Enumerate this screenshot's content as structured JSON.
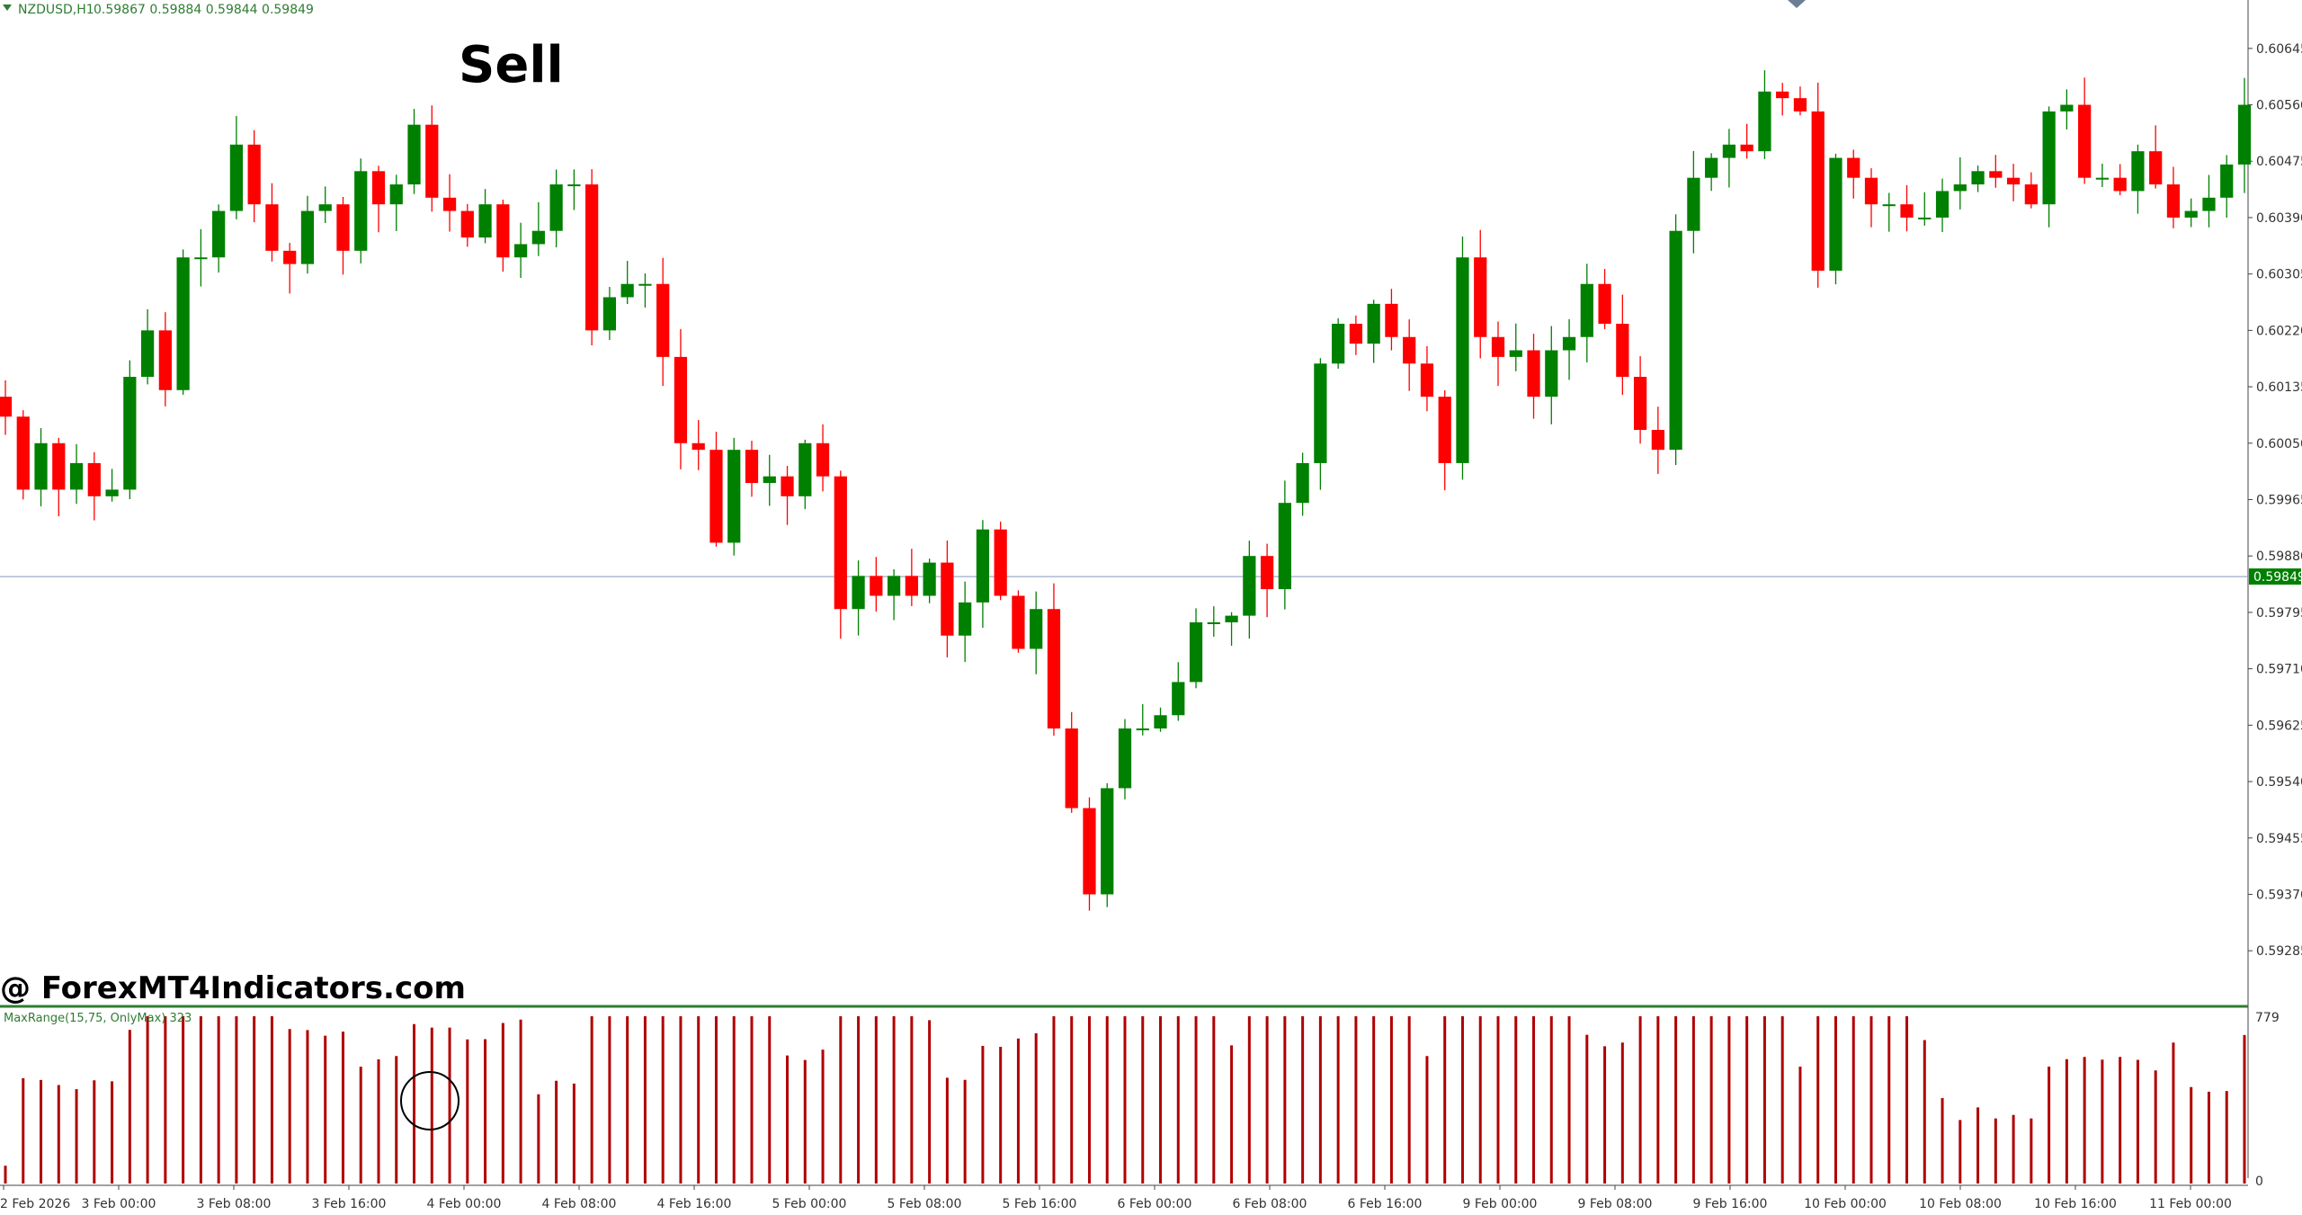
{
  "header": {
    "symbol_label": "NZDUSD,H1",
    "ohlc": "0.59867 0.59884 0.59844 0.59849"
  },
  "annotations": {
    "signal_label": "Sell",
    "watermark": "@ ForexMT4Indicators.com"
  },
  "price_axis": {
    "ticks": [
      "0.60645",
      "0.60560",
      "0.60475",
      "0.60390",
      "0.60305",
      "0.60220",
      "0.60135",
      "0.60050",
      "0.59965",
      "0.59880",
      "0.59795",
      "0.59710",
      "0.59625",
      "0.59540",
      "0.59455",
      "0.59370",
      "0.59285"
    ],
    "current_price": "0.59849"
  },
  "indicator": {
    "label": "MaxRange(15,75, OnlyMax) 323",
    "max_label": "779",
    "min_label": "0"
  },
  "time_axis": {
    "labels": [
      "2 Feb 2026",
      "3 Feb 00:00",
      "3 Feb 08:00",
      "3 Feb 16:00",
      "4 Feb 00:00",
      "4 Feb 08:00",
      "4 Feb 16:00",
      "5 Feb 00:00",
      "5 Feb 08:00",
      "5 Feb 16:00",
      "6 Feb 00:00",
      "6 Feb 08:00",
      "6 Feb 16:00",
      "9 Feb 00:00",
      "9 Feb 08:00",
      "9 Feb 16:00",
      "10 Feb 00:00",
      "10 Feb 08:00",
      "10 Feb 16:00",
      "11 Feb 00:00"
    ]
  },
  "colors": {
    "bull": "#008000",
    "bear": "#ff0000",
    "indicator_bar": "#b00000",
    "axis_text": "#333333",
    "current_price_bg": "#008000",
    "current_line": "#8899bb"
  },
  "chart_data": [
    {
      "type": "candlestick",
      "title": "NZDUSD,H1",
      "ylim": [
        0.5925,
        0.6068
      ],
      "close_series": [
        0.6009,
        0.5998,
        0.6005,
        0.5998,
        0.6002,
        0.5997,
        0.5998,
        0.6015,
        0.6022,
        0.6013,
        0.6033,
        0.6033,
        0.604,
        0.605,
        0.6041,
        0.6034,
        0.6032,
        0.604,
        0.6041,
        0.6034,
        0.6046,
        0.6041,
        0.6044,
        0.6053,
        0.6042,
        0.604,
        0.6036,
        0.6041,
        0.6033,
        0.6035,
        0.6037,
        0.6044,
        0.6044,
        0.6022,
        0.6027,
        0.6029,
        0.6029,
        0.6018,
        0.6005,
        0.6004,
        0.599,
        0.6004,
        0.5999,
        0.6,
        0.5997,
        0.6005,
        0.6,
        0.598,
        0.5985,
        0.5982,
        0.5985,
        0.5982,
        0.5987,
        0.5976,
        0.5981,
        0.5992,
        0.5982,
        0.5974,
        0.598,
        0.5962,
        0.595,
        0.5937,
        0.5953,
        0.5962,
        0.5962,
        0.5964,
        0.5969,
        0.5978,
        0.5978,
        0.5979,
        0.5988,
        0.5983,
        0.5996,
        0.6002,
        0.6017,
        0.6023,
        0.602,
        0.6026,
        0.6021,
        0.6017,
        0.6012,
        0.6002,
        0.6033,
        0.6021,
        0.6018,
        0.6019,
        0.6012,
        0.6019,
        0.6021,
        0.6029,
        0.6023,
        0.6015,
        0.6007,
        0.6004,
        0.6037,
        0.6045,
        0.6048,
        0.605,
        0.6049,
        0.6058,
        0.6057,
        0.6055,
        0.6031,
        0.6048,
        0.6045,
        0.6041,
        0.6041,
        0.6039,
        0.6039,
        0.6043,
        0.6044,
        0.6046,
        0.6045,
        0.6044,
        0.6041,
        0.6055,
        0.6056,
        0.6045,
        0.6045,
        0.6043,
        0.6049,
        0.6044,
        0.6039,
        0.604,
        0.6042,
        0.6047,
        0.6056
      ]
    },
    {
      "type": "bar",
      "title": "MaxRange(15,75, OnlyMax) 323",
      "ylim": [
        0,
        779
      ]
    }
  ]
}
